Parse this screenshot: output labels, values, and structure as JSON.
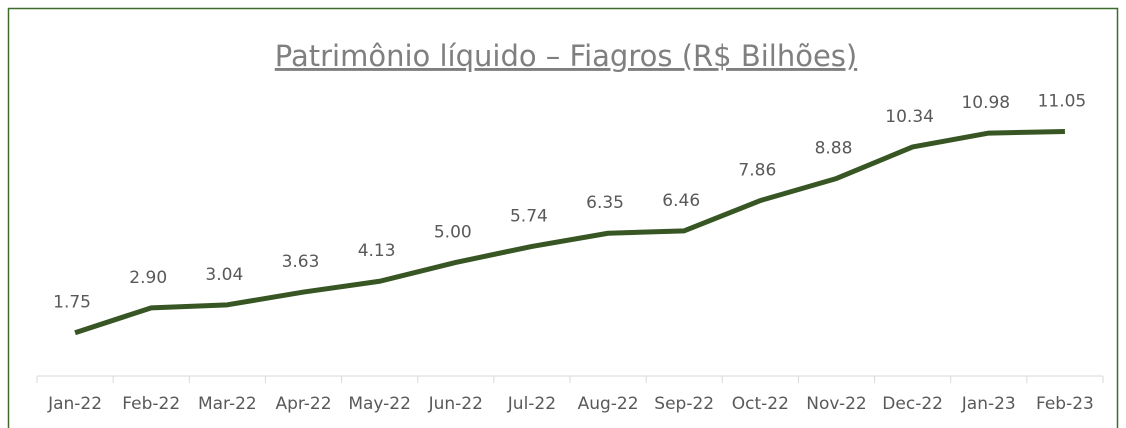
{
  "chart_data": {
    "type": "line",
    "title": "Patrimônio líquido – Fiagros (R$ Bilhões)",
    "categories": [
      "Jan-22",
      "Feb-22",
      "Mar-22",
      "Apr-22",
      "May-22",
      "Jun-22",
      "Jul-22",
      "Aug-22",
      "Sep-22",
      "Oct-22",
      "Nov-22",
      "Dec-22",
      "Jan-23",
      "Feb-23"
    ],
    "values": [
      1.75,
      2.9,
      3.04,
      3.63,
      4.13,
      5,
      5.74,
      6.35,
      6.46,
      7.86,
      8.88,
      10.34,
      10.98,
      11.05
    ],
    "value_labels": [
      "1.75",
      "2.90",
      "3.04",
      "3.63",
      "4.13",
      "5.00",
      "5.74",
      "6.35",
      "6.46",
      "7.86",
      "8.88",
      "10.34",
      "10.98",
      "11.05"
    ],
    "color": "#375623",
    "ylim": [
      -0.25,
      12
    ]
  }
}
